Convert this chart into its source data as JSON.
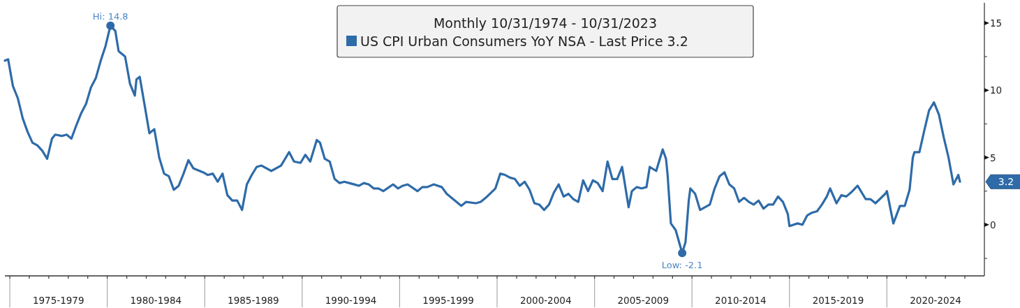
{
  "chart_data": {
    "type": "line",
    "title": "Monthly 10/31/1974 - 10/31/2023",
    "legend": "top",
    "grid": false,
    "marker": "none",
    "line_style": "solid",
    "xlim": [
      "1974-10-01",
      "2025-01-01"
    ],
    "xticks": [
      {
        "value": "1975-01-01",
        "label": null
      },
      {
        "value": "1976-01-01",
        "label": null
      },
      {
        "value": "1977-01-01",
        "label": null
      },
      {
        "value": "1978-01-01",
        "label": null
      },
      {
        "value": "1979-01-01",
        "label": null
      },
      {
        "value": "1980-01-01",
        "label": null
      },
      {
        "value": "1981-01-01",
        "label": null
      },
      {
        "value": "1982-01-01",
        "label": null
      },
      {
        "value": "1983-01-01",
        "label": null
      },
      {
        "value": "1984-01-01",
        "label": null
      },
      {
        "value": "1985-01-01",
        "label": null
      },
      {
        "value": "1986-01-01",
        "label": null
      },
      {
        "value": "1987-01-01",
        "label": null
      },
      {
        "value": "1988-01-01",
        "label": null
      },
      {
        "value": "1989-01-01",
        "label": null
      },
      {
        "value": "1990-01-01",
        "label": null
      },
      {
        "value": "1991-01-01",
        "label": null
      },
      {
        "value": "1992-01-01",
        "label": null
      },
      {
        "value": "1993-01-01",
        "label": null
      },
      {
        "value": "1994-01-01",
        "label": null
      },
      {
        "value": "1995-01-01",
        "label": null
      },
      {
        "value": "1996-01-01",
        "label": null
      },
      {
        "value": "1997-01-01",
        "label": null
      },
      {
        "value": "1998-01-01",
        "label": null
      },
      {
        "value": "1999-01-01",
        "label": null
      },
      {
        "value": "2000-01-01",
        "label": null
      },
      {
        "value": "2001-01-01",
        "label": null
      },
      {
        "value": "2002-01-01",
        "label": null
      },
      {
        "value": "2003-01-01",
        "label": null
      },
      {
        "value": "2004-01-01",
        "label": null
      },
      {
        "value": "2005-01-01",
        "label": null
      },
      {
        "value": "2006-01-01",
        "label": null
      },
      {
        "value": "2007-01-01",
        "label": null
      },
      {
        "value": "2008-01-01",
        "label": null
      },
      {
        "value": "2009-01-01",
        "label": null
      },
      {
        "value": "2010-01-01",
        "label": null
      },
      {
        "value": "2011-01-01",
        "label": null
      },
      {
        "value": "2012-01-01",
        "label": null
      },
      {
        "value": "2013-01-01",
        "label": null
      },
      {
        "value": "2014-01-01",
        "label": null
      },
      {
        "value": "2015-01-01",
        "label": null
      },
      {
        "value": "2016-01-01",
        "label": null
      },
      {
        "value": "2017-01-01",
        "label": null
      },
      {
        "value": "2018-01-01",
        "label": null
      },
      {
        "value": "2019-01-01",
        "label": null
      },
      {
        "value": "2020-01-01",
        "label": null
      },
      {
        "value": "2021-01-01",
        "label": null
      },
      {
        "value": "2022-01-01",
        "label": null
      },
      {
        "value": "2023-01-01",
        "label": null
      },
      {
        "value": "2024-01-01",
        "label": null
      },
      {
        "value": "1977-07-01",
        "label": "1975-1979"
      },
      {
        "value": "1982-07-01",
        "label": "1980-1984"
      },
      {
        "value": "1987-07-01",
        "label": "1985-1989"
      },
      {
        "value": "1992-07-01",
        "label": "1990-1994"
      },
      {
        "value": "1997-07-01",
        "label": "1995-1999"
      },
      {
        "value": "2002-07-01",
        "label": "2000-2004"
      },
      {
        "value": "2007-07-01",
        "label": "2005-2009"
      },
      {
        "value": "2012-07-01",
        "label": "2010-2014"
      },
      {
        "value": "2017-07-01",
        "label": "2015-2019"
      },
      {
        "value": "2022-07-01",
        "label": "2020-2024"
      }
    ],
    "ylim": [
      -3.8,
      16.5
    ],
    "yticks": [
      {
        "value": -2.5,
        "label": null
      },
      0,
      {
        "value": 2.5,
        "label": null
      },
      5,
      {
        "value": 7.5,
        "label": null
      },
      10,
      {
        "value": 12.5,
        "label": null
      },
      15
    ],
    "annotations": [
      {
        "text": "Hi: 14.8",
        "x": "1980-03",
        "y": 14.8
      },
      {
        "text": "Low: -2.1",
        "x": "2009-07",
        "y": -2.1
      },
      "3.2"
    ],
    "series": [
      {
        "name": "US CPI Urban Consumers YoY NSA - Last Price 3.2",
        "color": "#2e6ba8",
        "x": [
          "1974-10",
          "1974-12",
          "1975-03",
          "1975-06",
          "1975-09",
          "1975-12",
          "1976-03",
          "1976-06",
          "1976-09",
          "1976-12",
          "1977-03",
          "1977-05",
          "1977-09",
          "1977-12",
          "1978-03",
          "1978-06",
          "1978-09",
          "1978-12",
          "1979-03",
          "1979-06",
          "1979-09",
          "1979-12",
          "1980-03",
          "1980-06",
          "1980-08",
          "1980-12",
          "1981-03",
          "1981-06",
          "1981-07",
          "1981-09",
          "1981-12",
          "1982-03",
          "1982-06",
          "1982-09",
          "1982-12",
          "1983-03",
          "1983-06",
          "1983-09",
          "1983-12",
          "1984-03",
          "1984-06",
          "1984-12",
          "1985-03",
          "1985-06",
          "1985-09",
          "1985-12",
          "1986-03",
          "1986-06",
          "1986-09",
          "1986-12",
          "1987-03",
          "1987-06",
          "1987-09",
          "1987-12",
          "1988-06",
          "1988-12",
          "1989-05",
          "1989-08",
          "1989-12",
          "1990-03",
          "1990-06",
          "1990-10",
          "1990-12",
          "1991-03",
          "1991-06",
          "1991-09",
          "1991-12",
          "1992-03",
          "1992-06",
          "1992-12",
          "1993-03",
          "1993-06",
          "1993-09",
          "1993-12",
          "1994-03",
          "1994-09",
          "1994-12",
          "1995-03",
          "1995-06",
          "1995-12",
          "1996-03",
          "1996-06",
          "1996-10",
          "1997-03",
          "1997-06",
          "1997-12",
          "1998-03",
          "1998-06",
          "1998-12",
          "1999-03",
          "1999-06",
          "1999-12",
          "2000-03",
          "2000-06",
          "2000-09",
          "2000-12",
          "2001-03",
          "2001-06",
          "2001-09",
          "2001-12",
          "2002-03",
          "2002-06",
          "2002-09",
          "2002-12",
          "2003-03",
          "2003-06",
          "2003-09",
          "2003-12",
          "2004-03",
          "2004-06",
          "2004-09",
          "2004-12",
          "2005-03",
          "2005-06",
          "2005-09",
          "2005-12",
          "2006-03",
          "2006-06",
          "2006-10",
          "2006-12",
          "2007-03",
          "2007-06",
          "2007-09",
          "2007-11",
          "2008-03",
          "2008-07",
          "2008-09",
          "2008-10",
          "2008-12",
          "2009-03",
          "2009-07",
          "2009-09",
          "2009-11",
          "2009-12",
          "2010-03",
          "2010-06",
          "2010-12",
          "2011-03",
          "2011-06",
          "2011-09",
          "2011-12",
          "2012-03",
          "2012-06",
          "2012-09",
          "2012-12",
          "2013-03",
          "2013-06",
          "2013-09",
          "2013-12",
          "2014-03",
          "2014-06",
          "2014-09",
          "2014-12",
          "2015-01",
          "2015-06",
          "2015-09",
          "2015-12",
          "2016-03",
          "2016-06",
          "2016-09",
          "2016-12",
          "2017-02",
          "2017-06",
          "2017-09",
          "2017-12",
          "2018-03",
          "2018-07",
          "2018-12",
          "2019-03",
          "2019-06",
          "2019-12",
          "2020-01",
          "2020-05",
          "2020-09",
          "2020-12",
          "2021-03",
          "2021-05",
          "2021-06",
          "2021-09",
          "2021-12",
          "2022-03",
          "2022-06",
          "2022-09",
          "2022-12",
          "2023-03",
          "2023-06",
          "2023-09",
          "2023-10"
        ],
        "values": [
          12.2,
          12.3,
          10.3,
          9.4,
          7.9,
          6.9,
          6.1,
          5.9,
          5.5,
          4.9,
          6.4,
          6.7,
          6.6,
          6.7,
          6.4,
          7.4,
          8.3,
          9.0,
          10.2,
          10.9,
          12.2,
          13.3,
          14.8,
          14.4,
          12.9,
          12.5,
          10.5,
          9.6,
          10.8,
          11.0,
          8.9,
          6.8,
          7.1,
          5.0,
          3.8,
          3.6,
          2.6,
          2.9,
          3.8,
          4.8,
          4.2,
          3.9,
          3.7,
          3.8,
          3.2,
          3.8,
          2.2,
          1.8,
          1.8,
          1.1,
          3.0,
          3.7,
          4.3,
          4.4,
          4.0,
          4.4,
          5.4,
          4.7,
          4.6,
          5.2,
          4.7,
          6.3,
          6.1,
          4.9,
          4.7,
          3.4,
          3.1,
          3.2,
          3.1,
          2.9,
          3.1,
          3.0,
          2.7,
          2.7,
          2.5,
          3.0,
          2.7,
          2.9,
          3.0,
          2.5,
          2.8,
          2.8,
          3.0,
          2.8,
          2.3,
          1.7,
          1.4,
          1.7,
          1.6,
          1.7,
          2.0,
          2.7,
          3.8,
          3.7,
          3.5,
          3.4,
          2.9,
          3.2,
          2.6,
          1.6,
          1.5,
          1.1,
          1.5,
          2.4,
          3.0,
          2.1,
          2.3,
          1.9,
          1.7,
          3.3,
          2.5,
          3.3,
          3.1,
          2.5,
          4.7,
          3.4,
          3.4,
          4.3,
          1.3,
          2.5,
          2.8,
          2.7,
          2.8,
          4.3,
          4.0,
          5.6,
          4.9,
          3.7,
          0.1,
          -0.4,
          -2.1,
          -1.3,
          1.8,
          2.7,
          2.3,
          1.1,
          1.5,
          2.7,
          3.6,
          3.9,
          3.0,
          2.7,
          1.7,
          2.0,
          1.7,
          1.5,
          1.8,
          1.2,
          1.5,
          1.5,
          2.1,
          1.7,
          0.8,
          -0.1,
          0.1,
          0.0,
          0.7,
          0.9,
          1.0,
          1.5,
          2.1,
          2.7,
          1.6,
          2.2,
          2.1,
          2.4,
          2.9,
          1.9,
          1.9,
          1.6,
          2.3,
          2.5,
          0.1,
          1.4,
          1.4,
          2.6,
          5.0,
          5.4,
          5.4,
          7.0,
          8.5,
          9.1,
          8.2,
          6.5,
          5.0,
          3.0,
          3.7,
          3.2
        ]
      }
    ]
  }
}
